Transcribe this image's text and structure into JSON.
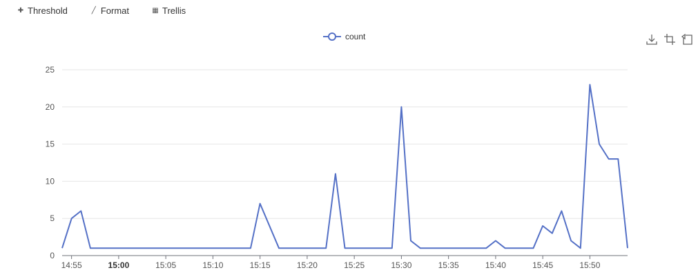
{
  "toolbar": {
    "items": [
      {
        "label": "Threshold",
        "icon": "puzzle-icon"
      },
      {
        "label": "Format",
        "icon": "brush-icon"
      },
      {
        "label": "Trellis",
        "icon": "grid-icon"
      }
    ]
  },
  "legend": {
    "label": "count"
  },
  "chart_tools": [
    "download-icon",
    "crop-icon",
    "restore-icon"
  ],
  "colors": {
    "series": "#5470c6",
    "grid": "#e6e6e6",
    "axis": "#6e7079"
  },
  "chart_data": {
    "type": "line",
    "ylim": [
      0,
      25
    ],
    "y_ticks": [
      0,
      5,
      10,
      15,
      20,
      25
    ],
    "x_start": "14:54",
    "x_end": "15:54",
    "x_tick_labels": [
      "14:55",
      "15:00",
      "15:05",
      "15:10",
      "15:15",
      "15:20",
      "15:25",
      "15:30",
      "15:35",
      "15:40",
      "15:45",
      "15:50"
    ],
    "bold_tick": "15:00",
    "grid": true,
    "legend_position": "top-center",
    "series": [
      {
        "name": "count",
        "points": [
          [
            "14:54",
            1
          ],
          [
            "14:55",
            5
          ],
          [
            "14:56",
            6
          ],
          [
            "14:57",
            1
          ],
          [
            "15:14",
            1
          ],
          [
            "15:15",
            7
          ],
          [
            "15:17",
            1
          ],
          [
            "15:22",
            1
          ],
          [
            "15:23",
            11
          ],
          [
            "15:24",
            1
          ],
          [
            "15:29",
            1
          ],
          [
            "15:30",
            20
          ],
          [
            "15:31",
            2
          ],
          [
            "15:32",
            1
          ],
          [
            "15:39",
            1
          ],
          [
            "15:40",
            2
          ],
          [
            "15:41",
            1
          ],
          [
            "15:44",
            1
          ],
          [
            "15:45",
            4
          ],
          [
            "15:46",
            3
          ],
          [
            "15:47",
            6
          ],
          [
            "15:48",
            2
          ],
          [
            "15:49",
            1
          ],
          [
            "15:50",
            23
          ],
          [
            "15:51",
            15
          ],
          [
            "15:52",
            13
          ],
          [
            "15:53",
            13
          ],
          [
            "15:54",
            1
          ]
        ]
      }
    ]
  }
}
